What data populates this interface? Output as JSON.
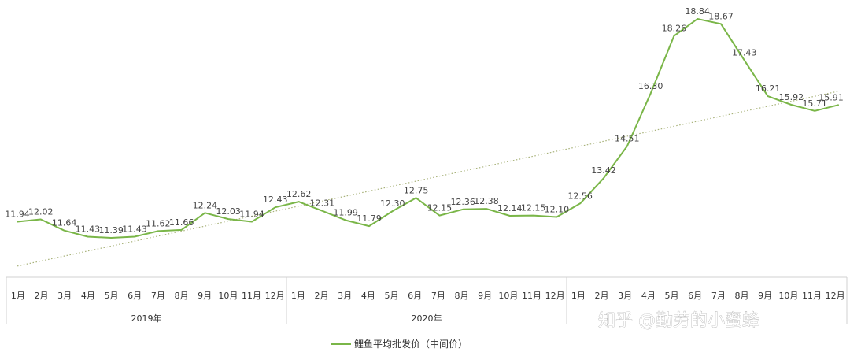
{
  "chart_data": {
    "type": "line",
    "title": "",
    "xlabel": "",
    "ylabel": "",
    "ylim": [
      10,
      19.2
    ],
    "grid": false,
    "legend": "bottom",
    "x_groups": [
      {
        "year": "2019年",
        "months": [
          "1月",
          "2月",
          "3月",
          "4月",
          "5月",
          "6月",
          "7月",
          "8月",
          "9月",
          "10月",
          "11月",
          "12月"
        ]
      },
      {
        "year": "2020年",
        "months": [
          "1月",
          "2月",
          "3月",
          "4月",
          "5月",
          "6月",
          "7月",
          "8月",
          "9月",
          "10月",
          "11月",
          "12月"
        ]
      },
      {
        "year": "",
        "months": [
          "1月",
          "2月",
          "3月",
          "4月",
          "5月",
          "6月",
          "7月",
          "8月",
          "9月",
          "10月",
          "11月",
          "12月"
        ]
      }
    ],
    "series": [
      {
        "name": "鲤鱼平均批发价（中间价）",
        "color": "#7ab648",
        "values": [
          11.94,
          12.02,
          11.64,
          11.43,
          11.39,
          11.43,
          11.62,
          11.66,
          12.24,
          12.03,
          11.94,
          12.43,
          12.62,
          12.31,
          11.99,
          11.79,
          12.3,
          12.75,
          12.15,
          12.36,
          12.38,
          12.14,
          12.15,
          12.1,
          12.56,
          13.42,
          14.51,
          16.3,
          18.26,
          18.84,
          18.67,
          17.43,
          16.21,
          15.92,
          15.71,
          15.91
        ],
        "labels": [
          "11.94",
          "12.02",
          "11.64",
          "11.43",
          "11.39",
          "11.43",
          "11.62",
          "11.66",
          "12.24",
          "12.03",
          "11.94",
          "12.43",
          "12.62",
          "12.31",
          "11.99",
          "11.79",
          "12.30",
          "12.75",
          "12.15",
          "12.36",
          "12.38",
          "12.14",
          "12.15",
          "12.10",
          "12.56",
          "13.42",
          "14.51",
          "16.30",
          "18.26",
          "18.84",
          "18.67",
          "17.43",
          "16.21",
          "15.92",
          "15.71",
          "15.91"
        ]
      }
    ],
    "trendline": {
      "type": "linear",
      "style": "dotted",
      "color": "#a8b27a"
    }
  },
  "watermark": "知乎 @勤劳的小蜜蜂"
}
